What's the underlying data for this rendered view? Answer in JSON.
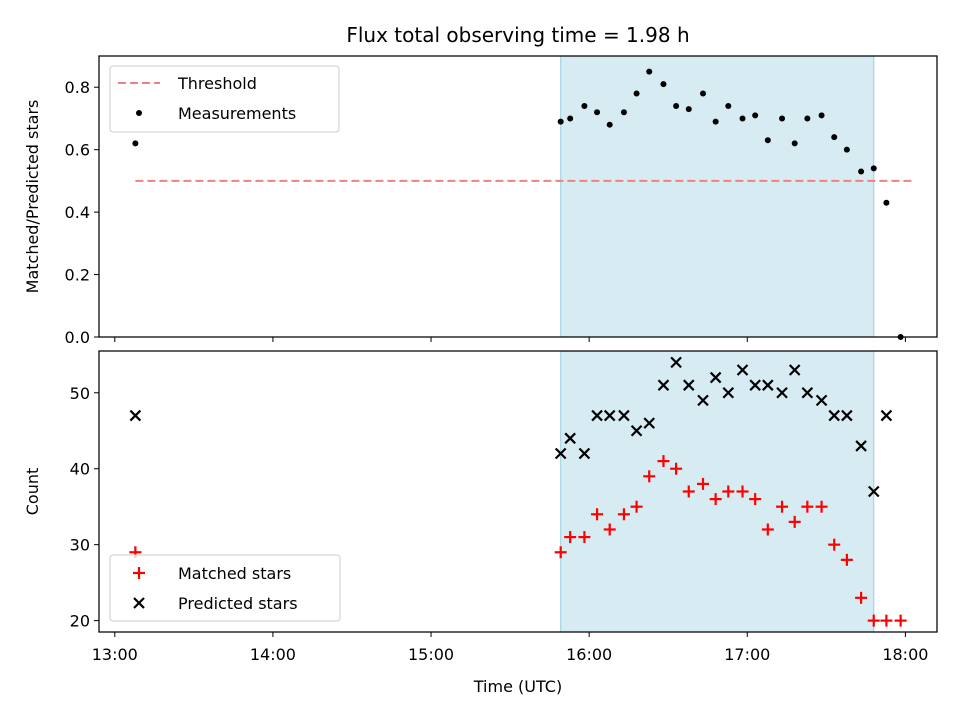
{
  "chart_data": {
    "title": "Flux total observing time = 1.98 h",
    "xlabel": "Time (UTC)",
    "x_tick_labels": [
      "13:00",
      "14:00",
      "15:00",
      "16:00",
      "17:00",
      "18:00"
    ],
    "x_ticks_hours": [
      13,
      14,
      15,
      16,
      17,
      18
    ],
    "xlim_hours": [
      12.9,
      18.2
    ],
    "shaded_span_hours": [
      15.82,
      17.8
    ],
    "shade_color": "#add8e6",
    "panels": [
      {
        "type": "scatter",
        "ylabel": "Matched/Predicted stars",
        "ylim": [
          0,
          0.9
        ],
        "yticks": [
          0.0,
          0.2,
          0.4,
          0.6,
          0.8
        ],
        "y_tick_labels": [
          "0.0",
          "0.2",
          "0.4",
          "0.6",
          "0.8"
        ],
        "legend_position": "upper-left",
        "threshold": {
          "name": "Threshold",
          "value": 0.5,
          "x_range_hours": [
            13.13,
            18.05
          ],
          "color": "#f08080"
        },
        "series": [
          {
            "name": "Measurements",
            "marker": "dot",
            "color": "#000000",
            "x": [
              13.13,
              15.82,
              15.88,
              15.97,
              16.05,
              16.13,
              16.22,
              16.3,
              16.38,
              16.47,
              16.55,
              16.63,
              16.72,
              16.8,
              16.88,
              16.97,
              17.05,
              17.13,
              17.22,
              17.3,
              17.38,
              17.47,
              17.55,
              17.63,
              17.72,
              17.8,
              17.88,
              17.97
            ],
            "y": [
              0.62,
              0.69,
              0.7,
              0.74,
              0.72,
              0.68,
              0.72,
              0.78,
              0.85,
              0.81,
              0.74,
              0.73,
              0.78,
              0.69,
              0.74,
              0.7,
              0.71,
              0.63,
              0.7,
              0.62,
              0.7,
              0.71,
              0.64,
              0.6,
              0.53,
              0.54,
              0.43,
              0.0
            ]
          }
        ]
      },
      {
        "type": "scatter",
        "ylabel": "Count",
        "ylim": [
          18.5,
          55.5
        ],
        "yticks": [
          20,
          30,
          40,
          50
        ],
        "y_tick_labels": [
          "20",
          "30",
          "40",
          "50"
        ],
        "legend_position": "lower-left",
        "series": [
          {
            "name": "Matched stars",
            "marker": "plus",
            "color": "#ff0000",
            "x": [
              13.13,
              15.82,
              15.88,
              15.97,
              16.05,
              16.13,
              16.22,
              16.3,
              16.38,
              16.47,
              16.55,
              16.63,
              16.72,
              16.8,
              16.88,
              16.97,
              17.05,
              17.13,
              17.22,
              17.3,
              17.38,
              17.47,
              17.55,
              17.63,
              17.72,
              17.8,
              17.88,
              17.97
            ],
            "y": [
              29,
              29,
              31,
              31,
              34,
              32,
              34,
              35,
              39,
              41,
              40,
              37,
              38,
              36,
              37,
              37,
              36,
              32,
              35,
              33,
              35,
              35,
              30,
              28,
              23,
              20,
              20,
              20
            ]
          },
          {
            "name": "Predicted stars",
            "marker": "x",
            "color": "#000000",
            "x": [
              13.13,
              15.82,
              15.88,
              15.97,
              16.05,
              16.13,
              16.22,
              16.3,
              16.38,
              16.47,
              16.55,
              16.63,
              16.72,
              16.8,
              16.88,
              16.97,
              17.05,
              17.13,
              17.22,
              17.3,
              17.38,
              17.47,
              17.55,
              17.63,
              17.72,
              17.8,
              17.88
            ],
            "y": [
              47,
              42,
              44,
              42,
              47,
              47,
              47,
              45,
              46,
              51,
              54,
              51,
              49,
              52,
              50,
              53,
              51,
              51,
              50,
              53,
              50,
              49,
              47,
              47,
              43,
              37,
              47
            ]
          }
        ]
      }
    ]
  }
}
